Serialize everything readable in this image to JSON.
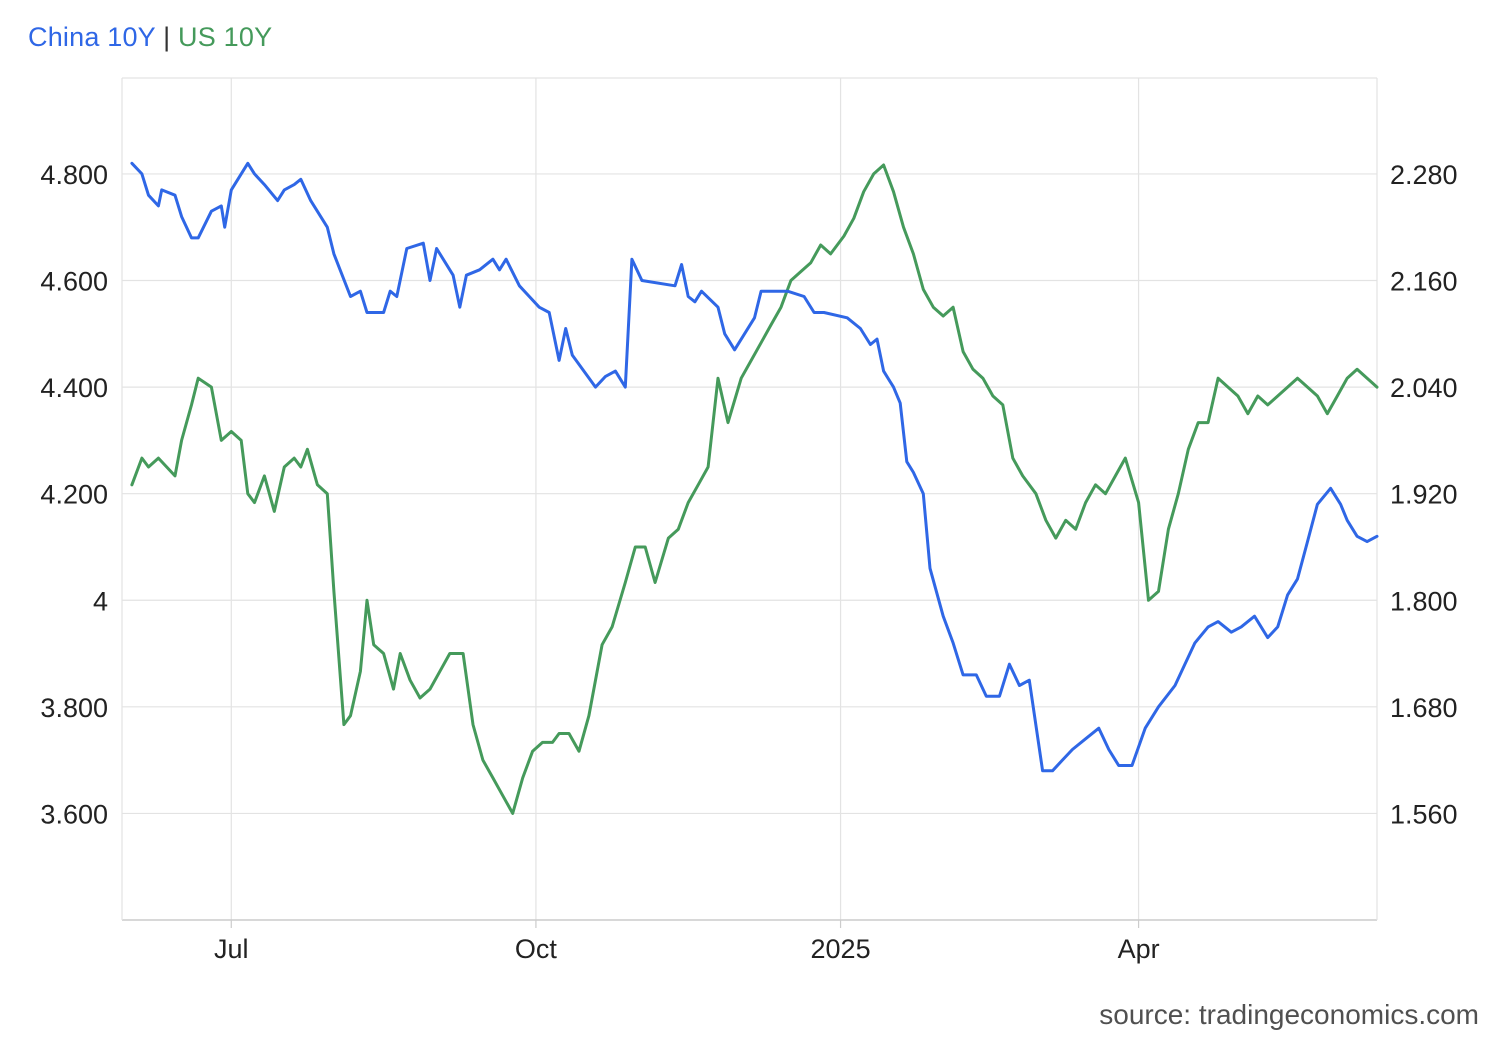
{
  "legend": {
    "china_label": "China 10Y",
    "separator": "|",
    "us_label": "US 10Y"
  },
  "source": "source: tradingeconomics.com",
  "colors": {
    "china": "#2f67e6",
    "us": "#459a5b",
    "grid": "#e3e3e3",
    "axis": "#cccccc"
  },
  "chart_data": {
    "type": "line",
    "title": "",
    "xlabel": "",
    "ylabel": "",
    "grid": true,
    "legend_position": "top-left",
    "x_axis": {
      "type": "date",
      "range": [
        "2024-05-29",
        "2025-06-12"
      ],
      "tick_labels": [
        {
          "label": "Jul",
          "date": "2024-07-01"
        },
        {
          "label": "Oct",
          "date": "2024-10-01"
        },
        {
          "label": "2025",
          "date": "2025-01-01"
        },
        {
          "label": "Apr",
          "date": "2025-04-01"
        }
      ]
    },
    "y_left": {
      "series": "China 10Y",
      "range": [
        3.4,
        4.98
      ],
      "tick_values": [
        3.6,
        3.8,
        4.0,
        4.2,
        4.4,
        4.6,
        4.8
      ],
      "tick_labels": [
        "3.600",
        "3.800",
        "4",
        "4.200",
        "4.400",
        "4.600",
        "4.800"
      ]
    },
    "y_right": {
      "series": "US 10Y",
      "range": [
        1.44,
        2.388
      ],
      "tick_values": [
        1.56,
        1.68,
        1.8,
        1.92,
        2.04,
        2.16,
        2.28
      ],
      "tick_labels": [
        "1.560",
        "1.680",
        "1.800",
        "1.920",
        "2.040",
        "2.160",
        "2.280"
      ]
    },
    "series": [
      {
        "name": "China 10Y",
        "axis": "left",
        "points": [
          [
            "2024-06-01",
            4.82
          ],
          [
            "2024-06-04",
            4.8
          ],
          [
            "2024-06-06",
            4.76
          ],
          [
            "2024-06-09",
            4.74
          ],
          [
            "2024-06-10",
            4.77
          ],
          [
            "2024-06-14",
            4.76
          ],
          [
            "2024-06-16",
            4.72
          ],
          [
            "2024-06-19",
            4.68
          ],
          [
            "2024-06-21",
            4.68
          ],
          [
            "2024-06-25",
            4.73
          ],
          [
            "2024-06-28",
            4.74
          ],
          [
            "2024-06-29",
            4.7
          ],
          [
            "2024-07-01",
            4.77
          ],
          [
            "2024-07-06",
            4.82
          ],
          [
            "2024-07-08",
            4.8
          ],
          [
            "2024-07-11",
            4.78
          ],
          [
            "2024-07-15",
            4.75
          ],
          [
            "2024-07-17",
            4.77
          ],
          [
            "2024-07-20",
            4.78
          ],
          [
            "2024-07-22",
            4.79
          ],
          [
            "2024-07-25",
            4.75
          ],
          [
            "2024-07-30",
            4.7
          ],
          [
            "2024-08-01",
            4.65
          ],
          [
            "2024-08-06",
            4.57
          ],
          [
            "2024-08-09",
            4.58
          ],
          [
            "2024-08-11",
            4.54
          ],
          [
            "2024-08-16",
            4.54
          ],
          [
            "2024-08-18",
            4.58
          ],
          [
            "2024-08-20",
            4.57
          ],
          [
            "2024-08-23",
            4.66
          ],
          [
            "2024-08-28",
            4.67
          ],
          [
            "2024-08-30",
            4.6
          ],
          [
            "2024-09-01",
            4.66
          ],
          [
            "2024-09-06",
            4.61
          ],
          [
            "2024-09-08",
            4.55
          ],
          [
            "2024-09-10",
            4.61
          ],
          [
            "2024-09-14",
            4.62
          ],
          [
            "2024-09-18",
            4.64
          ],
          [
            "2024-09-20",
            4.62
          ],
          [
            "2024-09-22",
            4.64
          ],
          [
            "2024-09-26",
            4.59
          ],
          [
            "2024-09-29",
            4.57
          ],
          [
            "2024-10-02",
            4.55
          ],
          [
            "2024-10-05",
            4.54
          ],
          [
            "2024-10-08",
            4.45
          ],
          [
            "2024-10-10",
            4.51
          ],
          [
            "2024-10-12",
            4.46
          ],
          [
            "2024-10-19",
            4.4
          ],
          [
            "2024-10-22",
            4.42
          ],
          [
            "2024-10-25",
            4.43
          ],
          [
            "2024-10-28",
            4.4
          ],
          [
            "2024-10-30",
            4.64
          ],
          [
            "2024-11-02",
            4.6
          ],
          [
            "2024-11-12",
            4.59
          ],
          [
            "2024-11-14",
            4.63
          ],
          [
            "2024-11-16",
            4.57
          ],
          [
            "2024-11-18",
            4.56
          ],
          [
            "2024-11-20",
            4.58
          ],
          [
            "2024-11-25",
            4.55
          ],
          [
            "2024-11-27",
            4.5
          ],
          [
            "2024-11-30",
            4.47
          ],
          [
            "2024-12-06",
            4.53
          ],
          [
            "2024-12-08",
            4.58
          ],
          [
            "2024-12-10",
            4.58
          ],
          [
            "2024-12-16",
            4.58
          ],
          [
            "2024-12-21",
            4.57
          ],
          [
            "2024-12-24",
            4.54
          ],
          [
            "2024-12-27",
            4.54
          ],
          [
            "2025-01-03",
            4.53
          ],
          [
            "2025-01-07",
            4.51
          ],
          [
            "2025-01-10",
            4.48
          ],
          [
            "2025-01-12",
            4.49
          ],
          [
            "2025-01-14",
            4.43
          ],
          [
            "2025-01-17",
            4.4
          ],
          [
            "2025-01-19",
            4.37
          ],
          [
            "2025-01-21",
            4.26
          ],
          [
            "2025-01-23",
            4.24
          ],
          [
            "2025-01-26",
            4.2
          ],
          [
            "2025-01-28",
            4.06
          ],
          [
            "2025-02-01",
            3.97
          ],
          [
            "2025-02-04",
            3.92
          ],
          [
            "2025-02-07",
            3.86
          ],
          [
            "2025-02-11",
            3.86
          ],
          [
            "2025-02-14",
            3.82
          ],
          [
            "2025-02-18",
            3.82
          ],
          [
            "2025-02-21",
            3.88
          ],
          [
            "2025-02-24",
            3.84
          ],
          [
            "2025-02-27",
            3.85
          ],
          [
            "2025-03-03",
            3.68
          ],
          [
            "2025-03-06",
            3.68
          ],
          [
            "2025-03-09",
            3.7
          ],
          [
            "2025-03-12",
            3.72
          ],
          [
            "2025-03-16",
            3.74
          ],
          [
            "2025-03-20",
            3.76
          ],
          [
            "2025-03-23",
            3.72
          ],
          [
            "2025-03-26",
            3.69
          ],
          [
            "2025-03-30",
            3.69
          ],
          [
            "2025-04-03",
            3.76
          ],
          [
            "2025-04-07",
            3.8
          ],
          [
            "2025-04-12",
            3.84
          ],
          [
            "2025-04-15",
            3.88
          ],
          [
            "2025-04-18",
            3.92
          ],
          [
            "2025-04-22",
            3.95
          ],
          [
            "2025-04-25",
            3.96
          ],
          [
            "2025-04-29",
            3.94
          ],
          [
            "2025-05-02",
            3.95
          ],
          [
            "2025-05-06",
            3.97
          ],
          [
            "2025-05-10",
            3.93
          ],
          [
            "2025-05-13",
            3.95
          ],
          [
            "2025-05-16",
            4.01
          ],
          [
            "2025-05-19",
            4.04
          ],
          [
            "2025-05-22",
            4.11
          ],
          [
            "2025-05-25",
            4.18
          ],
          [
            "2025-05-29",
            4.21
          ],
          [
            "2025-06-01",
            4.18
          ],
          [
            "2025-06-03",
            4.15
          ],
          [
            "2025-06-06",
            4.12
          ],
          [
            "2025-06-09",
            4.11
          ],
          [
            "2025-06-12",
            4.12
          ]
        ]
      },
      {
        "name": "US 10Y",
        "axis": "right",
        "points": [
          [
            "2024-06-01",
            1.93
          ],
          [
            "2024-06-04",
            1.96
          ],
          [
            "2024-06-06",
            1.95
          ],
          [
            "2024-06-09",
            1.96
          ],
          [
            "2024-06-14",
            1.94
          ],
          [
            "2024-06-16",
            1.98
          ],
          [
            "2024-06-19",
            2.02
          ],
          [
            "2024-06-21",
            2.05
          ],
          [
            "2024-06-25",
            2.04
          ],
          [
            "2024-06-28",
            1.98
          ],
          [
            "2024-07-01",
            1.99
          ],
          [
            "2024-07-04",
            1.98
          ],
          [
            "2024-07-06",
            1.92
          ],
          [
            "2024-07-08",
            1.91
          ],
          [
            "2024-07-11",
            1.94
          ],
          [
            "2024-07-14",
            1.9
          ],
          [
            "2024-07-17",
            1.95
          ],
          [
            "2024-07-20",
            1.96
          ],
          [
            "2024-07-22",
            1.95
          ],
          [
            "2024-07-24",
            1.97
          ],
          [
            "2024-07-27",
            1.93
          ],
          [
            "2024-07-30",
            1.92
          ],
          [
            "2024-08-01",
            1.81
          ],
          [
            "2024-08-04",
            1.66
          ],
          [
            "2024-08-06",
            1.67
          ],
          [
            "2024-08-09",
            1.72
          ],
          [
            "2024-08-11",
            1.8
          ],
          [
            "2024-08-13",
            1.75
          ],
          [
            "2024-08-16",
            1.74
          ],
          [
            "2024-08-19",
            1.7
          ],
          [
            "2024-08-21",
            1.74
          ],
          [
            "2024-08-24",
            1.71
          ],
          [
            "2024-08-27",
            1.69
          ],
          [
            "2024-08-30",
            1.7
          ],
          [
            "2024-09-02",
            1.72
          ],
          [
            "2024-09-05",
            1.74
          ],
          [
            "2024-09-09",
            1.74
          ],
          [
            "2024-09-12",
            1.66
          ],
          [
            "2024-09-15",
            1.62
          ],
          [
            "2024-09-18",
            1.6
          ],
          [
            "2024-09-21",
            1.58
          ],
          [
            "2024-09-24",
            1.56
          ],
          [
            "2024-09-27",
            1.6
          ],
          [
            "2024-09-30",
            1.63
          ],
          [
            "2024-10-03",
            1.64
          ],
          [
            "2024-10-06",
            1.64
          ],
          [
            "2024-10-08",
            1.65
          ],
          [
            "2024-10-11",
            1.65
          ],
          [
            "2024-10-14",
            1.63
          ],
          [
            "2024-10-17",
            1.67
          ],
          [
            "2024-10-21",
            1.75
          ],
          [
            "2024-10-24",
            1.77
          ],
          [
            "2024-10-28",
            1.82
          ],
          [
            "2024-10-31",
            1.86
          ],
          [
            "2024-11-03",
            1.86
          ],
          [
            "2024-11-06",
            1.82
          ],
          [
            "2024-11-10",
            1.87
          ],
          [
            "2024-11-13",
            1.88
          ],
          [
            "2024-11-16",
            1.91
          ],
          [
            "2024-11-19",
            1.93
          ],
          [
            "2024-11-22",
            1.95
          ],
          [
            "2024-11-25",
            2.05
          ],
          [
            "2024-11-28",
            2.0
          ],
          [
            "2024-12-02",
            2.05
          ],
          [
            "2024-12-05",
            2.07
          ],
          [
            "2024-12-08",
            2.09
          ],
          [
            "2024-12-11",
            2.11
          ],
          [
            "2024-12-14",
            2.13
          ],
          [
            "2024-12-17",
            2.16
          ],
          [
            "2024-12-20",
            2.17
          ],
          [
            "2024-12-23",
            2.18
          ],
          [
            "2024-12-26",
            2.2
          ],
          [
            "2024-12-29",
            2.19
          ],
          [
            "2025-01-02",
            2.21
          ],
          [
            "2025-01-05",
            2.23
          ],
          [
            "2025-01-08",
            2.26
          ],
          [
            "2025-01-11",
            2.28
          ],
          [
            "2025-01-14",
            2.29
          ],
          [
            "2025-01-17",
            2.26
          ],
          [
            "2025-01-20",
            2.22
          ],
          [
            "2025-01-23",
            2.19
          ],
          [
            "2025-01-26",
            2.15
          ],
          [
            "2025-01-29",
            2.13
          ],
          [
            "2025-02-01",
            2.12
          ],
          [
            "2025-02-04",
            2.13
          ],
          [
            "2025-02-07",
            2.08
          ],
          [
            "2025-02-10",
            2.06
          ],
          [
            "2025-02-13",
            2.05
          ],
          [
            "2025-02-16",
            2.03
          ],
          [
            "2025-02-19",
            2.02
          ],
          [
            "2025-02-22",
            1.96
          ],
          [
            "2025-02-25",
            1.94
          ],
          [
            "2025-03-01",
            1.92
          ],
          [
            "2025-03-04",
            1.89
          ],
          [
            "2025-03-07",
            1.87
          ],
          [
            "2025-03-10",
            1.89
          ],
          [
            "2025-03-13",
            1.88
          ],
          [
            "2025-03-16",
            1.91
          ],
          [
            "2025-03-19",
            1.93
          ],
          [
            "2025-03-22",
            1.92
          ],
          [
            "2025-03-25",
            1.94
          ],
          [
            "2025-03-28",
            1.96
          ],
          [
            "2025-04-01",
            1.91
          ],
          [
            "2025-04-04",
            1.8
          ],
          [
            "2025-04-07",
            1.81
          ],
          [
            "2025-04-10",
            1.88
          ],
          [
            "2025-04-13",
            1.92
          ],
          [
            "2025-04-16",
            1.97
          ],
          [
            "2025-04-19",
            2.0
          ],
          [
            "2025-04-22",
            2.0
          ],
          [
            "2025-04-25",
            2.05
          ],
          [
            "2025-04-28",
            2.04
          ],
          [
            "2025-05-01",
            2.03
          ],
          [
            "2025-05-04",
            2.01
          ],
          [
            "2025-05-07",
            2.03
          ],
          [
            "2025-05-10",
            2.02
          ],
          [
            "2025-05-13",
            2.03
          ],
          [
            "2025-05-16",
            2.04
          ],
          [
            "2025-05-19",
            2.05
          ],
          [
            "2025-05-22",
            2.04
          ],
          [
            "2025-05-25",
            2.03
          ],
          [
            "2025-05-28",
            2.01
          ],
          [
            "2025-05-31",
            2.03
          ],
          [
            "2025-06-03",
            2.05
          ],
          [
            "2025-06-06",
            2.06
          ],
          [
            "2025-06-09",
            2.05
          ],
          [
            "2025-06-12",
            2.04
          ]
        ]
      }
    ]
  }
}
